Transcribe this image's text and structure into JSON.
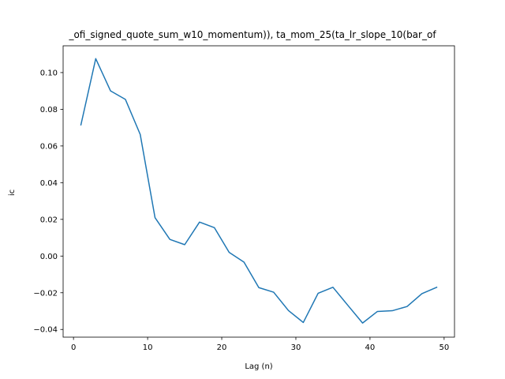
{
  "chart_data": {
    "type": "line",
    "title": "_ofi_signed_quote_sum_w10_momentum)), ta_mom_25(ta_lr_slope_10(bar_of",
    "xlabel": "Lag (n)",
    "ylabel": "ic",
    "xlim": [
      -1.4,
      51.4
    ],
    "ylim": [
      -0.0442,
      0.1146
    ],
    "xticks": [
      0,
      10,
      20,
      30,
      40,
      50
    ],
    "yticks": [
      -0.04,
      -0.02,
      0.0,
      0.02,
      0.04,
      0.06,
      0.08,
      0.1
    ],
    "ytick_labels": [
      "−0.04",
      "−0.02",
      "0.00",
      "0.02",
      "0.04",
      "0.06",
      "0.08",
      "0.10"
    ],
    "grid": false,
    "series": [
      {
        "color": "#1f77b4",
        "x": [
          1,
          3,
          5,
          7,
          9,
          11,
          13,
          15,
          17,
          19,
          21,
          23,
          25,
          27,
          29,
          31,
          33,
          35,
          37,
          39,
          41,
          43,
          45,
          47,
          49
        ],
        "y": [
          0.0715,
          0.1076,
          0.09,
          0.0854,
          0.0663,
          0.0209,
          0.0091,
          0.0062,
          0.0185,
          0.0155,
          0.002,
          -0.0033,
          -0.0172,
          -0.0197,
          -0.0297,
          -0.0362,
          -0.0203,
          -0.017,
          -0.0268,
          -0.0365,
          -0.0302,
          -0.0298,
          -0.0275,
          -0.0205,
          -0.017
        ]
      }
    ]
  }
}
